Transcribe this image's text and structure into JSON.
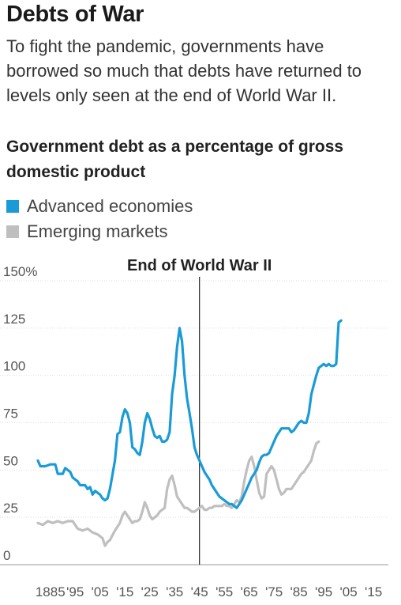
{
  "header": {
    "title": "Debts of War",
    "subtitle": "To fight the pandemic, governments have borrowed so much that debts have returned to levels only seen at the end of World War II."
  },
  "colors": {
    "advanced": "#1a9bd7",
    "emerging": "#bfbfbf",
    "gridline": "#dddddd",
    "annotation_line": "#222222"
  },
  "chart_data": {
    "type": "line",
    "title": "Government debt as a percentage of gross domestic product",
    "xlabel": "",
    "ylabel": "",
    "xlim": [
      1880,
      2021
    ],
    "ylim": [
      0,
      150
    ],
    "yticks": [
      {
        "value": 0,
        "label": "0"
      },
      {
        "value": 25,
        "label": "25"
      },
      {
        "value": 50,
        "label": "50"
      },
      {
        "value": 75,
        "label": "75"
      },
      {
        "value": 100,
        "label": "100"
      },
      {
        "value": 125,
        "label": "125"
      },
      {
        "value": 150,
        "label": "150%"
      }
    ],
    "xticks": [
      {
        "value": 1885,
        "label": "1885"
      },
      {
        "value": 1895,
        "label": "'95"
      },
      {
        "value": 1905,
        "label": "'05"
      },
      {
        "value": 1915,
        "label": "'15"
      },
      {
        "value": 1925,
        "label": "'25"
      },
      {
        "value": 1935,
        "label": "'35"
      },
      {
        "value": 1945,
        "label": "'45"
      },
      {
        "value": 1955,
        "label": "'55"
      },
      {
        "value": 1965,
        "label": "'65"
      },
      {
        "value": 1975,
        "label": "'75"
      },
      {
        "value": 1985,
        "label": "'85"
      },
      {
        "value": 1995,
        "label": "'95"
      },
      {
        "value": 2005,
        "label": "'05"
      },
      {
        "value": 2015,
        "label": "'15"
      }
    ],
    "grid": true,
    "legend_position": "top-left",
    "annotations": [
      {
        "x": 1945,
        "label": "End of World War II"
      }
    ],
    "series": [
      {
        "name": "Advanced economies",
        "color": "#1a9bd7",
        "points": [
          [
            1880,
            55
          ],
          [
            1881,
            52
          ],
          [
            1883,
            52
          ],
          [
            1885,
            53
          ],
          [
            1887,
            53
          ],
          [
            1888,
            48
          ],
          [
            1890,
            48
          ],
          [
            1891,
            51
          ],
          [
            1893,
            49
          ],
          [
            1894,
            46
          ],
          [
            1896,
            44
          ],
          [
            1897,
            42
          ],
          [
            1899,
            42
          ],
          [
            1900,
            40
          ],
          [
            1901,
            41
          ],
          [
            1902,
            37
          ],
          [
            1903,
            39
          ],
          [
            1905,
            37
          ],
          [
            1906,
            35
          ],
          [
            1907,
            34
          ],
          [
            1908,
            35
          ],
          [
            1909,
            40
          ],
          [
            1911,
            55
          ],
          [
            1912,
            69
          ],
          [
            1913,
            70
          ],
          [
            1914,
            78
          ],
          [
            1915,
            82
          ],
          [
            1916,
            80
          ],
          [
            1917,
            75
          ],
          [
            1918,
            62
          ],
          [
            1919,
            61
          ],
          [
            1920,
            59
          ],
          [
            1921,
            58
          ],
          [
            1922,
            65
          ],
          [
            1923,
            75
          ],
          [
            1924,
            80
          ],
          [
            1925,
            77
          ],
          [
            1926,
            72
          ],
          [
            1927,
            68
          ],
          [
            1928,
            67
          ],
          [
            1929,
            68
          ],
          [
            1930,
            65
          ],
          [
            1931,
            65
          ],
          [
            1932,
            66
          ],
          [
            1933,
            70
          ],
          [
            1934,
            90
          ],
          [
            1935,
            100
          ],
          [
            1936,
            115
          ],
          [
            1937,
            125
          ],
          [
            1938,
            118
          ],
          [
            1939,
            100
          ],
          [
            1940,
            88
          ],
          [
            1941,
            80
          ],
          [
            1942,
            72
          ],
          [
            1943,
            62
          ],
          [
            1944,
            58
          ],
          [
            1945,
            55
          ],
          [
            1946,
            52
          ],
          [
            1947,
            49
          ],
          [
            1948,
            47
          ],
          [
            1949,
            45
          ],
          [
            1950,
            42
          ],
          [
            1951,
            40
          ],
          [
            1952,
            38
          ],
          [
            1953,
            36
          ],
          [
            1954,
            35
          ],
          [
            1955,
            34
          ],
          [
            1956,
            33
          ],
          [
            1957,
            32
          ],
          [
            1958,
            32
          ],
          [
            1959,
            31
          ],
          [
            1960,
            30
          ],
          [
            1961,
            32
          ],
          [
            1962,
            34
          ],
          [
            1963,
            37
          ],
          [
            1964,
            40
          ],
          [
            1965,
            43
          ],
          [
            1966,
            46
          ],
          [
            1967,
            48
          ],
          [
            1968,
            50
          ],
          [
            1969,
            54
          ],
          [
            1970,
            57
          ],
          [
            1971,
            58
          ],
          [
            1972,
            58
          ],
          [
            1973,
            59
          ],
          [
            1974,
            62
          ],
          [
            1975,
            65
          ],
          [
            1976,
            68
          ],
          [
            1977,
            70
          ],
          [
            1978,
            72
          ],
          [
            1979,
            72
          ],
          [
            1980,
            72
          ],
          [
            1981,
            72
          ],
          [
            1982,
            70
          ],
          [
            1983,
            71
          ],
          [
            1984,
            73
          ],
          [
            1985,
            75
          ],
          [
            1986,
            76
          ],
          [
            1987,
            75
          ],
          [
            1988,
            75
          ],
          [
            1989,
            80
          ],
          [
            1990,
            90
          ],
          [
            1991,
            95
          ],
          [
            1992,
            100
          ],
          [
            1993,
            104
          ],
          [
            1994,
            105
          ],
          [
            1995,
            106
          ],
          [
            1996,
            105
          ],
          [
            1997,
            106
          ],
          [
            1998,
            105
          ],
          [
            1999,
            105
          ],
          [
            2000,
            106
          ],
          [
            2001,
            128
          ],
          [
            2002,
            129
          ]
        ]
      },
      {
        "name": "Emerging markets",
        "color": "#bfbfbf",
        "points": [
          [
            1880,
            22
          ],
          [
            1882,
            21
          ],
          [
            1884,
            23
          ],
          [
            1886,
            22
          ],
          [
            1888,
            23
          ],
          [
            1890,
            22
          ],
          [
            1892,
            23
          ],
          [
            1894,
            23
          ],
          [
            1896,
            19
          ],
          [
            1898,
            18
          ],
          [
            1900,
            19
          ],
          [
            1902,
            17
          ],
          [
            1904,
            16
          ],
          [
            1906,
            14
          ],
          [
            1907,
            10
          ],
          [
            1908,
            12
          ],
          [
            1909,
            13
          ],
          [
            1911,
            18
          ],
          [
            1913,
            22
          ],
          [
            1914,
            26
          ],
          [
            1915,
            28
          ],
          [
            1916,
            26
          ],
          [
            1917,
            24
          ],
          [
            1918,
            22
          ],
          [
            1919,
            23
          ],
          [
            1920,
            23
          ],
          [
            1921,
            24
          ],
          [
            1922,
            28
          ],
          [
            1923,
            33
          ],
          [
            1924,
            30
          ],
          [
            1925,
            26
          ],
          [
            1926,
            24
          ],
          [
            1927,
            25
          ],
          [
            1928,
            26
          ],
          [
            1929,
            28
          ],
          [
            1930,
            29
          ],
          [
            1931,
            30
          ],
          [
            1932,
            40
          ],
          [
            1933,
            45
          ],
          [
            1934,
            47
          ],
          [
            1935,
            42
          ],
          [
            1936,
            36
          ],
          [
            1937,
            34
          ],
          [
            1938,
            32
          ],
          [
            1939,
            30
          ],
          [
            1940,
            30
          ],
          [
            1941,
            29
          ],
          [
            1942,
            28
          ],
          [
            1943,
            28
          ],
          [
            1944,
            29
          ],
          [
            1945,
            30
          ],
          [
            1946,
            31
          ],
          [
            1947,
            29
          ],
          [
            1948,
            29
          ],
          [
            1949,
            30
          ],
          [
            1950,
            30
          ],
          [
            1951,
            31
          ],
          [
            1952,
            31
          ],
          [
            1953,
            31
          ],
          [
            1954,
            31
          ],
          [
            1955,
            32
          ],
          [
            1956,
            31
          ],
          [
            1957,
            31
          ],
          [
            1958,
            30
          ],
          [
            1959,
            32
          ],
          [
            1960,
            34
          ],
          [
            1961,
            33
          ],
          [
            1962,
            36
          ],
          [
            1963,
            44
          ],
          [
            1964,
            50
          ],
          [
            1965,
            55
          ],
          [
            1966,
            57
          ],
          [
            1967,
            52
          ],
          [
            1968,
            45
          ],
          [
            1969,
            38
          ],
          [
            1970,
            35
          ],
          [
            1971,
            36
          ],
          [
            1972,
            48
          ],
          [
            1973,
            50
          ],
          [
            1974,
            52
          ],
          [
            1975,
            50
          ],
          [
            1976,
            45
          ],
          [
            1977,
            40
          ],
          [
            1978,
            37
          ],
          [
            1979,
            38
          ],
          [
            1980,
            40
          ],
          [
            1981,
            40
          ],
          [
            1982,
            40
          ],
          [
            1983,
            42
          ],
          [
            1984,
            44
          ],
          [
            1985,
            46
          ],
          [
            1986,
            48
          ],
          [
            1987,
            49
          ],
          [
            1988,
            51
          ],
          [
            1989,
            53
          ],
          [
            1990,
            55
          ],
          [
            1991,
            60
          ],
          [
            1992,
            64
          ],
          [
            1993,
            65
          ]
        ]
      }
    ]
  }
}
